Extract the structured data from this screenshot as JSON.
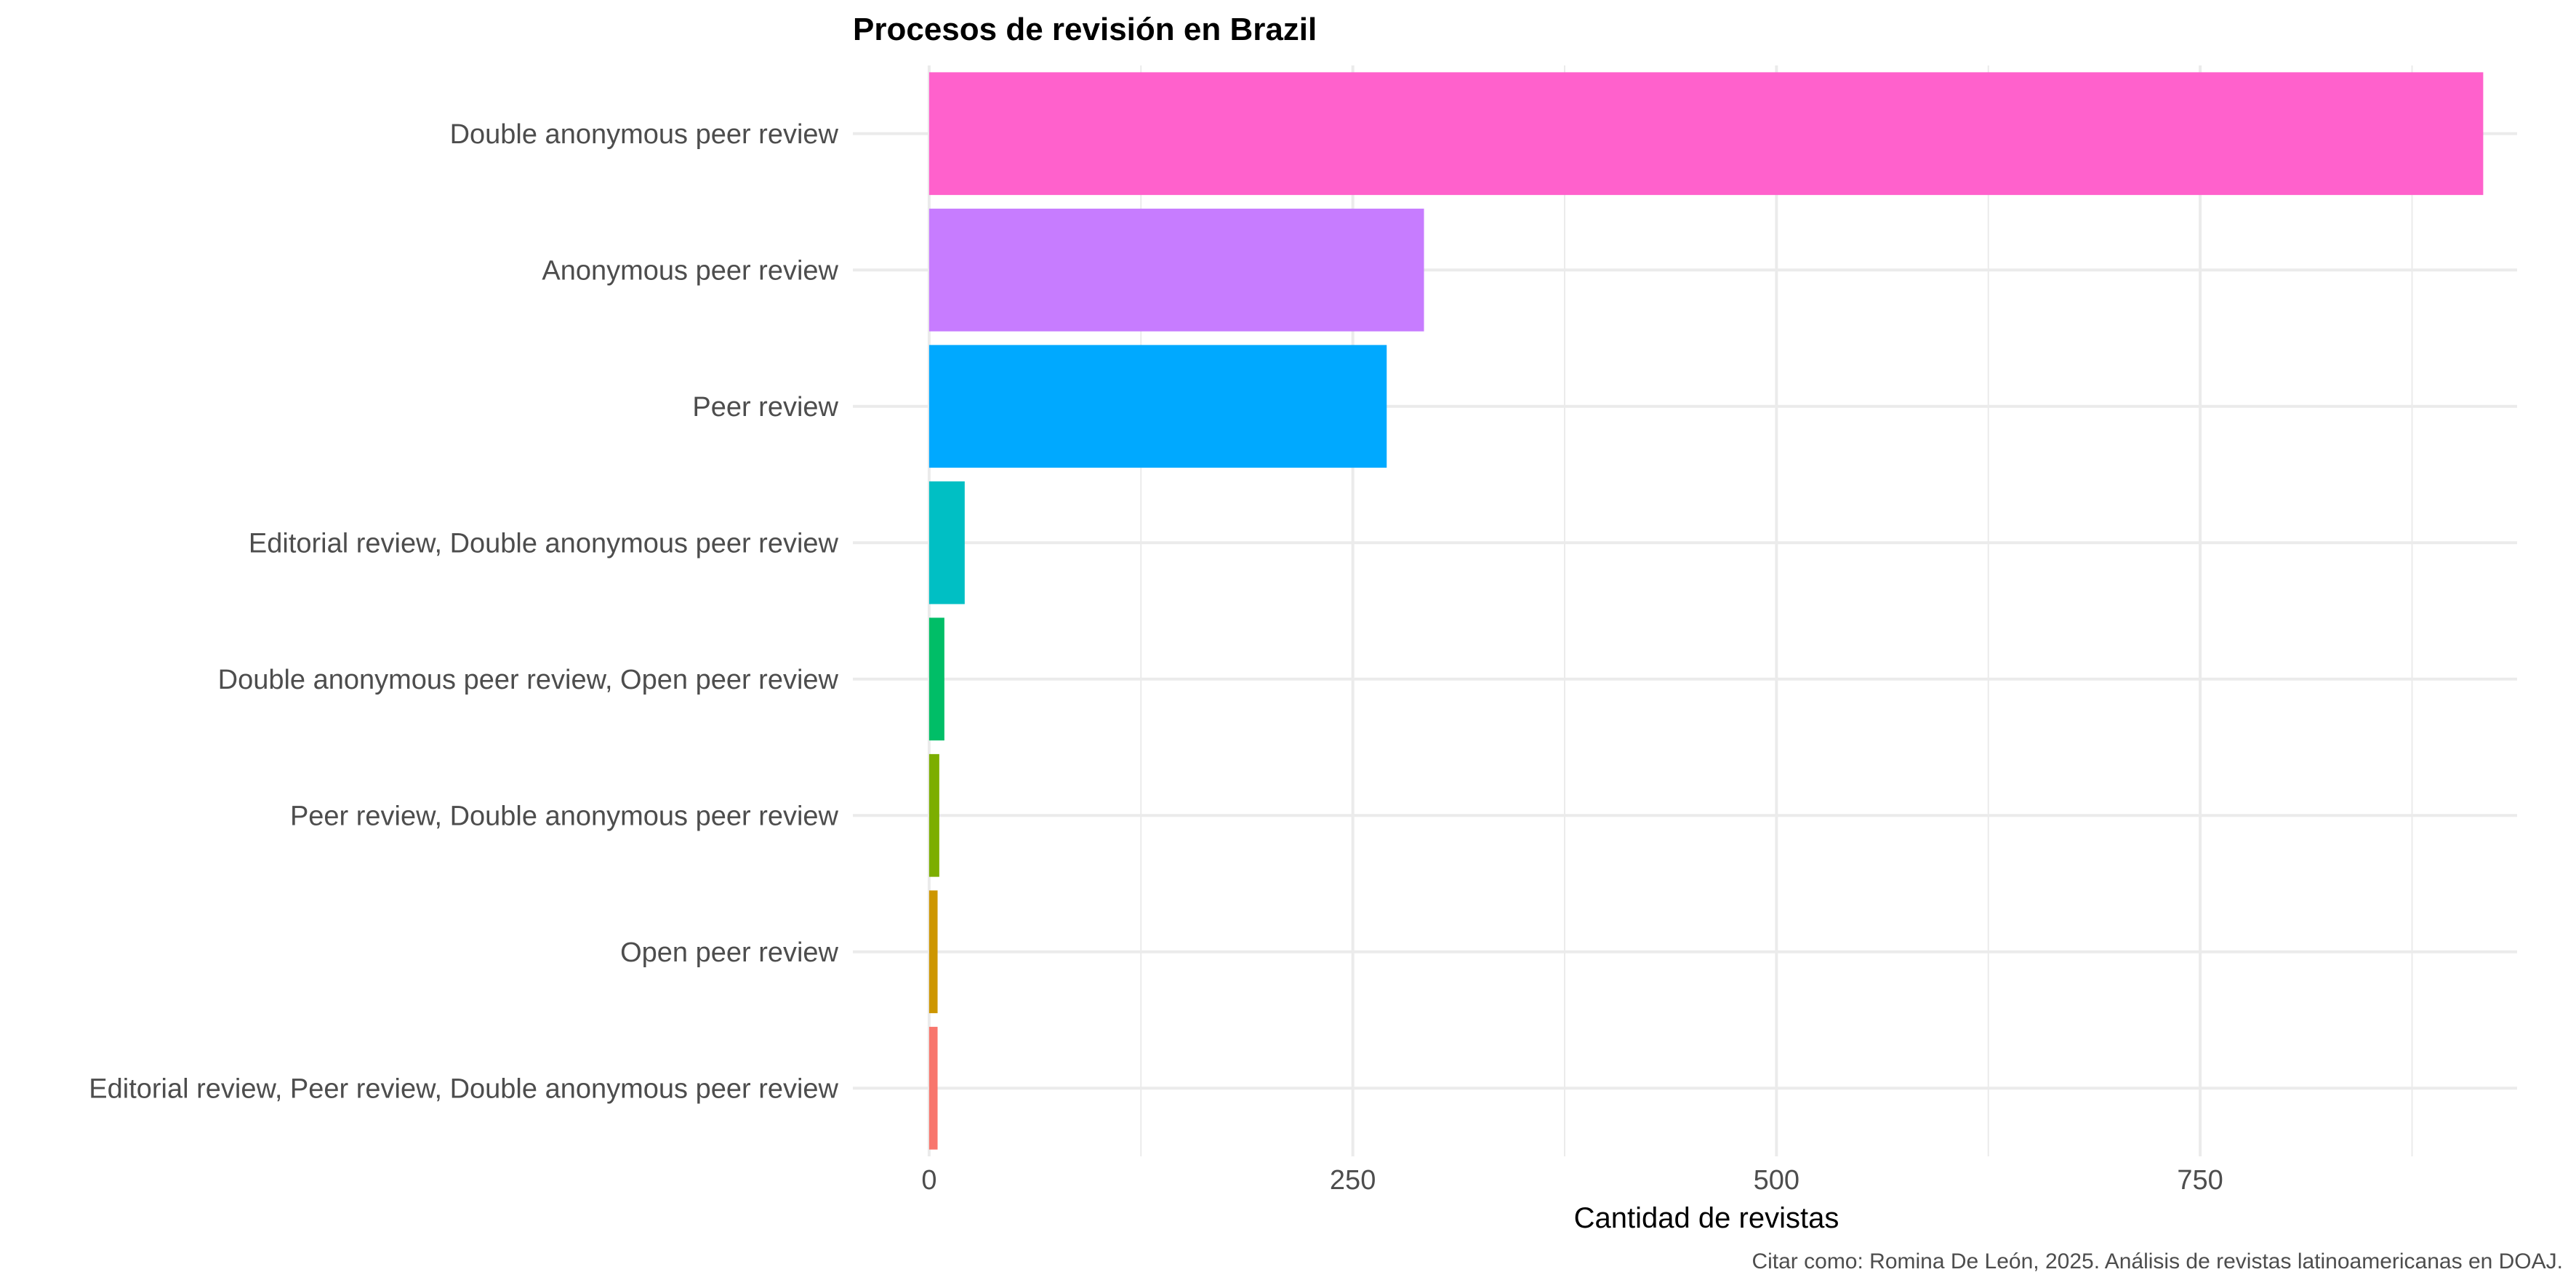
{
  "chart_data": {
    "type": "bar",
    "orientation": "horizontal",
    "title": "Procesos de revisión en Brazil",
    "xlabel": "Cantidad de revistas",
    "ylabel": "",
    "caption": "Citar como: Romina De León, 2025. Análisis de revistas latinoamericanas en DOAJ.",
    "categories": [
      "Double anonymous peer review",
      "Anonymous peer review",
      "Peer review",
      "Editorial review, Double anonymous peer review",
      "Double anonymous peer review, Open peer review",
      "Peer review, Double anonymous peer review",
      "Open peer review",
      "Editorial review, Peer review, Double anonymous peer review"
    ],
    "values": [
      917,
      292,
      270,
      21,
      9,
      6,
      5,
      5
    ],
    "colors": [
      "#FF61CC",
      "#C77CFF",
      "#00A9FF",
      "#00BFC4",
      "#00BE67",
      "#7CAE00",
      "#CD9600",
      "#F8766D"
    ],
    "xlim": [
      -45,
      937
    ],
    "xticks": [
      0,
      250,
      500,
      750
    ],
    "xtick_labels": [
      "0",
      "250",
      "500",
      "750"
    ],
    "grid": true,
    "legend": "none"
  }
}
